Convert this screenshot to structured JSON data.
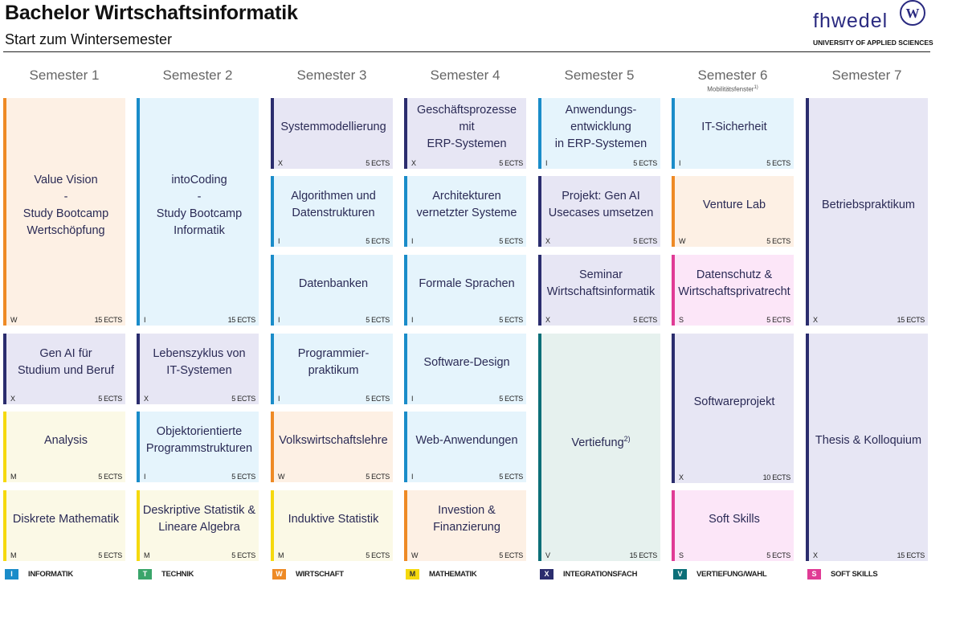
{
  "header": {
    "title": "Bachelor Wirtschaftsinformatik",
    "subtitle": "Start zum Wintersemester",
    "logo_text": "fhwedel",
    "logo_seal": "W",
    "logo_tagline": "UNIVERSITY OF APPLIED SCIENCES"
  },
  "semesters": [
    {
      "label": "Semester 1"
    },
    {
      "label": "Semester 2"
    },
    {
      "label": "Semester 3"
    },
    {
      "label": "Semester 4"
    },
    {
      "label": "Semester 5"
    },
    {
      "label": "Semester 6",
      "note": "Mobilitätsfenster",
      "note_sup": "1)"
    },
    {
      "label": "Semester 7"
    }
  ],
  "categories": {
    "I": {
      "label": "INFORMATIK",
      "color": "#1a8cc9",
      "bg": "#e5f4fc"
    },
    "T": {
      "label": "TECHNIK",
      "color": "#3aa56a",
      "bg": "#e6f5ec"
    },
    "W": {
      "label": "WIRTSCHAFT",
      "color": "#ee8a25",
      "bg": "#fdf0e4"
    },
    "M": {
      "label": "MATHEMATIK",
      "color": "#f5d90e",
      "bg": "#fbf9e6"
    },
    "X": {
      "label": "INTEGRATIONSFACH",
      "color": "#2b2d6e",
      "bg": "#e7e6f4"
    },
    "V": {
      "label": "VERTIEFUNG/WAHL",
      "color": "#0c6f78",
      "bg": "#e6f1ee"
    },
    "S": {
      "label": "SOFT SKILLS",
      "color": "#e03b95",
      "bg": "#fce6f8"
    }
  },
  "legend_order": [
    "I",
    "T",
    "W",
    "M",
    "X",
    "V",
    "S"
  ],
  "modules": [
    {
      "sem": 0,
      "row": 0,
      "span": 3,
      "name": "Value Vision\n-\nStudy Bootcamp\nWertschöpfung",
      "cat": "W",
      "ects": "15 ECTS"
    },
    {
      "sem": 0,
      "row": 3,
      "span": 1,
      "name": "Gen AI für\nStudium und Beruf",
      "cat": "X",
      "ects": "5 ECTS"
    },
    {
      "sem": 0,
      "row": 4,
      "span": 1,
      "name": "Analysis",
      "cat": "M",
      "ects": "5 ECTS"
    },
    {
      "sem": 0,
      "row": 5,
      "span": 1,
      "name": "Diskrete Mathematik",
      "cat": "M",
      "ects": "5 ECTS"
    },
    {
      "sem": 1,
      "row": 0,
      "span": 3,
      "name": "intoCoding\n-\nStudy Bootcamp\nInformatik",
      "cat": "I",
      "ects": "15 ECTS"
    },
    {
      "sem": 1,
      "row": 3,
      "span": 1,
      "name": "Lebenszyklus von\nIT-Systemen",
      "cat": "X",
      "ects": "5 ECTS"
    },
    {
      "sem": 1,
      "row": 4,
      "span": 1,
      "name": "Objektorientierte\nProgrammstrukturen",
      "cat": "I",
      "ects": "5 ECTS"
    },
    {
      "sem": 1,
      "row": 5,
      "span": 1,
      "name": "Deskriptive Statistik &\nLineare Algebra",
      "cat": "M",
      "ects": "5 ECTS"
    },
    {
      "sem": 2,
      "row": 0,
      "span": 1,
      "name": "Systemmodellierung",
      "cat": "X",
      "ects": "5 ECTS"
    },
    {
      "sem": 2,
      "row": 1,
      "span": 1,
      "name": "Algorithmen und\nDatenstrukturen",
      "cat": "I",
      "ects": "5 ECTS"
    },
    {
      "sem": 2,
      "row": 2,
      "span": 1,
      "name": "Datenbanken",
      "cat": "I",
      "ects": "5 ECTS"
    },
    {
      "sem": 2,
      "row": 3,
      "span": 1,
      "name": "Programmier-\npraktikum",
      "cat": "I",
      "ects": "5 ECTS"
    },
    {
      "sem": 2,
      "row": 4,
      "span": 1,
      "name": "Volkswirtschaftslehre",
      "cat": "W",
      "ects": "5 ECTS"
    },
    {
      "sem": 2,
      "row": 5,
      "span": 1,
      "name": "Induktive Statistik",
      "cat": "M",
      "ects": "5 ECTS"
    },
    {
      "sem": 3,
      "row": 0,
      "span": 1,
      "name": "Geschäftsprozesse mit\nERP-Systemen",
      "cat": "X",
      "ects": "5 ECTS"
    },
    {
      "sem": 3,
      "row": 1,
      "span": 1,
      "name": "Architekturen\nvernetzter Systeme",
      "cat": "I",
      "ects": "5 ECTS"
    },
    {
      "sem": 3,
      "row": 2,
      "span": 1,
      "name": "Formale Sprachen",
      "cat": "I",
      "ects": "5 ECTS"
    },
    {
      "sem": 3,
      "row": 3,
      "span": 1,
      "name": "Software-Design",
      "cat": "I",
      "ects": "5 ECTS"
    },
    {
      "sem": 3,
      "row": 4,
      "span": 1,
      "name": "Web-Anwendungen",
      "cat": "I",
      "ects": "5 ECTS"
    },
    {
      "sem": 3,
      "row": 5,
      "span": 1,
      "name": "Investion &\nFinanzierung",
      "cat": "W",
      "ects": "5 ECTS"
    },
    {
      "sem": 4,
      "row": 0,
      "span": 1,
      "name": "Anwendungs-\nentwicklung\nin ERP-Systemen",
      "cat": "I",
      "ects": "5 ECTS"
    },
    {
      "sem": 4,
      "row": 1,
      "span": 1,
      "name": "Projekt: Gen AI\nUsecases umsetzen",
      "cat": "X",
      "ects": "5 ECTS"
    },
    {
      "sem": 4,
      "row": 2,
      "span": 1,
      "name": "Seminar\nWirtschaftsinformatik",
      "cat": "X",
      "ects": "5 ECTS"
    },
    {
      "sem": 4,
      "row": 3,
      "span": 3,
      "name": "Vertiefung",
      "sup": "2)",
      "cat": "V",
      "ects": "15 ECTS"
    },
    {
      "sem": 5,
      "row": 0,
      "span": 1,
      "name": "IT-Sicherheit",
      "cat": "I",
      "ects": "5 ECTS"
    },
    {
      "sem": 5,
      "row": 1,
      "span": 1,
      "name": "Venture Lab",
      "cat": "W",
      "ects": "5 ECTS"
    },
    {
      "sem": 5,
      "row": 2,
      "span": 1,
      "name": "Datenschutz &\nWirtschaftsprivatrecht",
      "cat": "S",
      "ects": "5 ECTS"
    },
    {
      "sem": 5,
      "row": 3,
      "span": 2,
      "name": "Softwareprojekt",
      "cat": "X",
      "ects": "10 ECTS"
    },
    {
      "sem": 5,
      "row": 5,
      "span": 1,
      "name": "Soft Skills",
      "cat": "S",
      "ects": "5 ECTS"
    },
    {
      "sem": 6,
      "row": 0,
      "span": 3,
      "name": "Betriebspraktikum",
      "cat": "X",
      "ects": "15 ECTS"
    },
    {
      "sem": 6,
      "row": 3,
      "span": 3,
      "name": "Thesis & Kolloquium",
      "cat": "X",
      "ects": "15 ECTS"
    }
  ]
}
